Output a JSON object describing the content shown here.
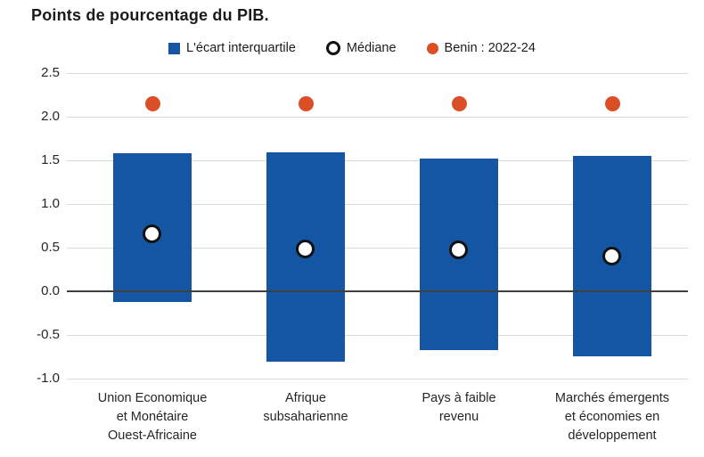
{
  "title": "Points de pourcentage du PIB.",
  "legend": {
    "iqr_label": "L'écart interquartile",
    "median_label": "Médiane",
    "benin_label": "Benin : 2022-24"
  },
  "chart_data": {
    "type": "bar",
    "title": "Points de pourcentage du PIB.",
    "categories": [
      "Union Economique et Monétaire Ouest-Africaine",
      "Afrique subsaharienne",
      "Pays à faible revenu",
      "Marchés émergents et économies en développement"
    ],
    "category_lines": [
      [
        "Union Economique",
        "et Monétaire",
        "Ouest-Africaine"
      ],
      [
        "Afrique",
        "subsaharienne"
      ],
      [
        "Pays à faible",
        "revenu"
      ],
      [
        "Marchés émergents",
        "et économies en",
        "développement"
      ]
    ],
    "series": [
      {
        "name": "L'écart interquartile",
        "type": "range-bar",
        "q1": [
          -0.12,
          -0.81,
          -0.67,
          -0.74
        ],
        "q3": [
          1.58,
          1.59,
          1.52,
          1.55
        ]
      },
      {
        "name": "Médiane",
        "type": "point",
        "values": [
          0.65,
          0.48,
          0.47,
          0.4
        ]
      },
      {
        "name": "Benin : 2022-24",
        "type": "point",
        "values": [
          2.15,
          2.15,
          2.15,
          2.15
        ]
      }
    ],
    "yticks": [
      2.5,
      2.0,
      1.5,
      1.0,
      0.5,
      0.0,
      -0.5,
      -1.0
    ],
    "ylim": [
      -1.0,
      2.5
    ],
    "grid": true,
    "legend_position": "top",
    "colors": {
      "bar": "#1455A4",
      "median_fill": "#ffffff",
      "median_stroke": "#111111",
      "benin": "#DB4F27",
      "gridline": "#D9D9D9",
      "zero_line": "#3F3F3F",
      "text": "#262626"
    }
  }
}
